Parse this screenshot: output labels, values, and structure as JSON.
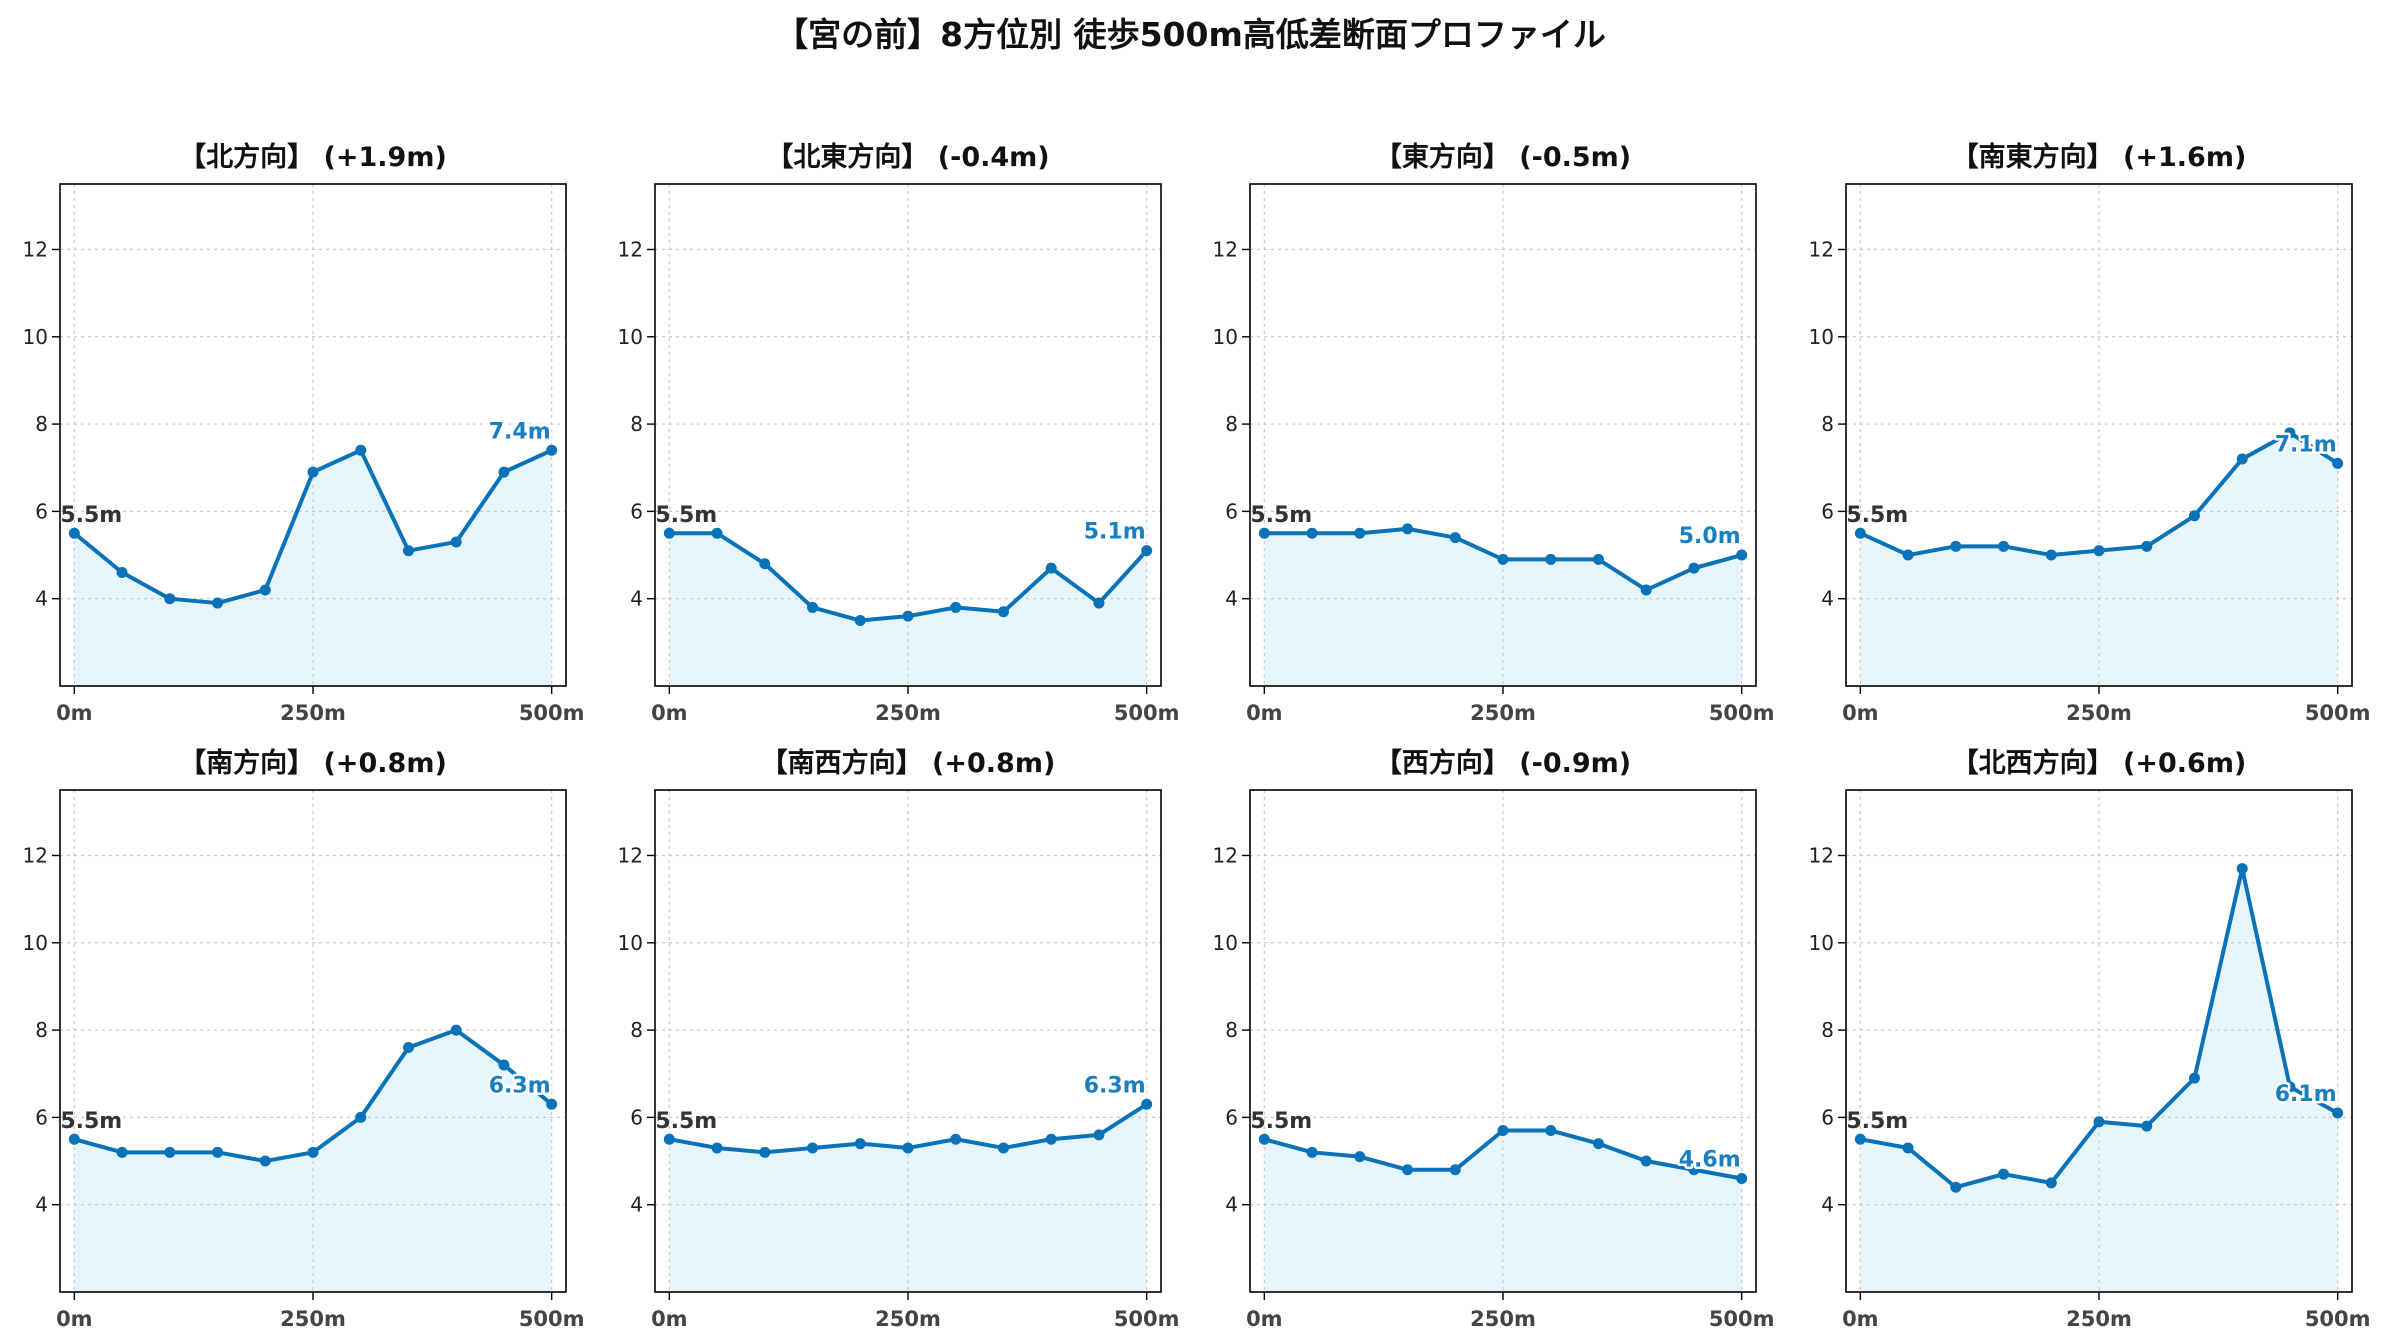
{
  "title": "【宮の前】8方位別 徒歩500m高低差断面プロファイル",
  "colors": {
    "line": "#0a72b8",
    "fill": "#e6f5fb",
    "grid": "#c8c8c8",
    "end_label": "#1a7fc1",
    "start_label": "#333333"
  },
  "chart_data": [
    {
      "type": "area",
      "title": "【北方向】 (+1.9m)",
      "x": [
        0,
        50,
        100,
        150,
        200,
        250,
        300,
        350,
        400,
        450,
        500
      ],
      "values": [
        5.5,
        4.6,
        4.0,
        3.9,
        4.2,
        6.9,
        7.4,
        5.1,
        5.3,
        6.9,
        7.4
      ],
      "start_label": "5.5m",
      "end_label": "7.4m",
      "xticks": [
        "0m",
        "250m",
        "500m"
      ],
      "yticks": [
        "4",
        "6",
        "8",
        "10",
        "12"
      ],
      "ylim": [
        2,
        13.5
      ],
      "xlim": [
        -15,
        515
      ],
      "grid": true
    },
    {
      "type": "area",
      "title": "【北東方向】 (-0.4m)",
      "x": [
        0,
        50,
        100,
        150,
        200,
        250,
        300,
        350,
        400,
        450,
        500
      ],
      "values": [
        5.5,
        5.5,
        4.8,
        3.8,
        3.5,
        3.6,
        3.8,
        3.7,
        4.7,
        3.9,
        5.1
      ],
      "start_label": "5.5m",
      "end_label": "5.1m",
      "xticks": [
        "0m",
        "250m",
        "500m"
      ],
      "yticks": [
        "4",
        "6",
        "8",
        "10",
        "12"
      ],
      "ylim": [
        2,
        13.5
      ],
      "xlim": [
        -15,
        515
      ],
      "grid": true
    },
    {
      "type": "area",
      "title": "【東方向】 (-0.5m)",
      "x": [
        0,
        50,
        100,
        150,
        200,
        250,
        300,
        350,
        400,
        450,
        500
      ],
      "values": [
        5.5,
        5.5,
        5.5,
        5.6,
        5.4,
        4.9,
        4.9,
        4.9,
        4.2,
        4.7,
        5.0
      ],
      "start_label": "5.5m",
      "end_label": "5.0m",
      "xticks": [
        "0m",
        "250m",
        "500m"
      ],
      "yticks": [
        "4",
        "6",
        "8",
        "10",
        "12"
      ],
      "ylim": [
        2,
        13.5
      ],
      "xlim": [
        -15,
        515
      ],
      "grid": true
    },
    {
      "type": "area",
      "title": "【南東方向】 (+1.6m)",
      "x": [
        0,
        50,
        100,
        150,
        200,
        250,
        300,
        350,
        400,
        450,
        500
      ],
      "values": [
        5.5,
        5.0,
        5.2,
        5.2,
        5.0,
        5.1,
        5.2,
        5.9,
        7.2,
        7.8,
        7.1
      ],
      "start_label": "5.5m",
      "end_label": "7.1m",
      "xticks": [
        "0m",
        "250m",
        "500m"
      ],
      "yticks": [
        "4",
        "6",
        "8",
        "10",
        "12"
      ],
      "ylim": [
        2,
        13.5
      ],
      "xlim": [
        -15,
        515
      ],
      "grid": true
    },
    {
      "type": "area",
      "title": "【南方向】 (+0.8m)",
      "x": [
        0,
        50,
        100,
        150,
        200,
        250,
        300,
        350,
        400,
        450,
        500
      ],
      "values": [
        5.5,
        5.2,
        5.2,
        5.2,
        5.0,
        5.2,
        6.0,
        7.6,
        8.0,
        7.2,
        6.3
      ],
      "start_label": "5.5m",
      "end_label": "6.3m",
      "xticks": [
        "0m",
        "250m",
        "500m"
      ],
      "yticks": [
        "4",
        "6",
        "8",
        "10",
        "12"
      ],
      "ylim": [
        2,
        13.5
      ],
      "xlim": [
        -15,
        515
      ],
      "grid": true
    },
    {
      "type": "area",
      "title": "【南西方向】 (+0.8m)",
      "x": [
        0,
        50,
        100,
        150,
        200,
        250,
        300,
        350,
        400,
        450,
        500
      ],
      "values": [
        5.5,
        5.3,
        5.2,
        5.3,
        5.4,
        5.3,
        5.5,
        5.3,
        5.5,
        5.6,
        6.3
      ],
      "start_label": "5.5m",
      "end_label": "6.3m",
      "xticks": [
        "0m",
        "250m",
        "500m"
      ],
      "yticks": [
        "4",
        "6",
        "8",
        "10",
        "12"
      ],
      "ylim": [
        2,
        13.5
      ],
      "xlim": [
        -15,
        515
      ],
      "grid": true
    },
    {
      "type": "area",
      "title": "【西方向】 (-0.9m)",
      "x": [
        0,
        50,
        100,
        150,
        200,
        250,
        300,
        350,
        400,
        450,
        500
      ],
      "values": [
        5.5,
        5.2,
        5.1,
        4.8,
        4.8,
        5.7,
        5.7,
        5.4,
        5.0,
        4.8,
        4.6
      ],
      "start_label": "5.5m",
      "end_label": "4.6m",
      "xticks": [
        "0m",
        "250m",
        "500m"
      ],
      "yticks": [
        "4",
        "6",
        "8",
        "10",
        "12"
      ],
      "ylim": [
        2,
        13.5
      ],
      "xlim": [
        -15,
        515
      ],
      "grid": true
    },
    {
      "type": "area",
      "title": "【北西方向】 (+0.6m)",
      "x": [
        0,
        50,
        100,
        150,
        200,
        250,
        300,
        350,
        400,
        450,
        500
      ],
      "values": [
        5.5,
        5.3,
        4.4,
        4.7,
        4.5,
        5.9,
        5.8,
        6.9,
        11.7,
        6.7,
        6.1
      ],
      "start_label": "5.5m",
      "end_label": "6.1m",
      "xticks": [
        "0m",
        "250m",
        "500m"
      ],
      "yticks": [
        "4",
        "6",
        "8",
        "10",
        "12"
      ],
      "ylim": [
        2,
        13.5
      ],
      "xlim": [
        -15,
        515
      ],
      "grid": true
    }
  ]
}
